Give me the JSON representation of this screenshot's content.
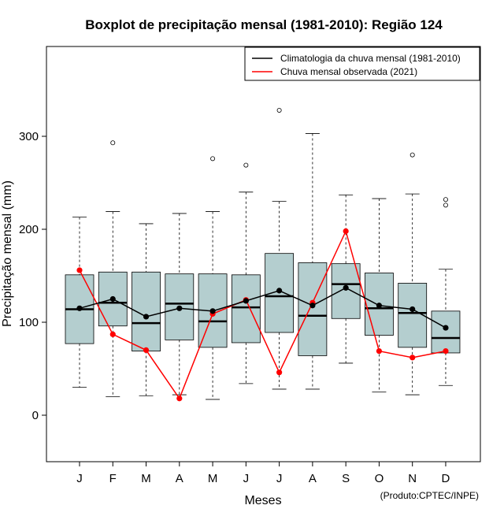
{
  "chart_data": {
    "type": "boxplot",
    "title": "Boxplot de precipitação mensal (1981-2010): Região 124",
    "xlabel": "Meses",
    "ylabel": "Precipitação mensal (mm)",
    "categories": [
      "J",
      "F",
      "M",
      "A",
      "M",
      "J",
      "J",
      "A",
      "S",
      "O",
      "N",
      "D"
    ],
    "ylim": [
      -50,
      400
    ],
    "yticks": [
      0,
      100,
      200,
      300
    ],
    "box_color": "#b4cecf",
    "boxes": [
      {
        "whisker_low": 30,
        "q1": 77,
        "median": 114,
        "q3": 151,
        "whisker_high": 213,
        "outliers": []
      },
      {
        "whisker_low": 20,
        "q1": 96,
        "median": 121,
        "q3": 154,
        "whisker_high": 219,
        "outliers": [
          293
        ]
      },
      {
        "whisker_low": 21,
        "q1": 69,
        "median": 99,
        "q3": 154,
        "whisker_high": 206,
        "outliers": []
      },
      {
        "whisker_low": 22,
        "q1": 81,
        "median": 120,
        "q3": 152,
        "whisker_high": 217,
        "outliers": []
      },
      {
        "whisker_low": 17,
        "q1": 73,
        "median": 101,
        "q3": 152,
        "whisker_high": 219,
        "outliers": [
          276
        ]
      },
      {
        "whisker_low": 34,
        "q1": 78,
        "median": 116,
        "q3": 151,
        "whisker_high": 240,
        "outliers": [
          269
        ]
      },
      {
        "whisker_low": 28,
        "q1": 89,
        "median": 128,
        "q3": 174,
        "whisker_high": 230,
        "outliers": [
          328
        ]
      },
      {
        "whisker_low": 28,
        "q1": 64,
        "median": 107,
        "q3": 164,
        "whisker_high": 303,
        "outliers": []
      },
      {
        "whisker_low": 56,
        "q1": 104,
        "median": 141,
        "q3": 163,
        "whisker_high": 237,
        "outliers": []
      },
      {
        "whisker_low": 25,
        "q1": 86,
        "median": 115,
        "q3": 153,
        "whisker_high": 233,
        "outliers": []
      },
      {
        "whisker_low": 22,
        "q1": 73,
        "median": 110,
        "q3": 142,
        "whisker_high": 238,
        "outliers": [
          280
        ]
      },
      {
        "whisker_low": 32,
        "q1": 67,
        "median": 83,
        "q3": 112,
        "whisker_high": 157,
        "outliers": [
          226,
          232
        ]
      }
    ],
    "series": [
      {
        "name": "Climatologia da chuva mensal (1981-2010)",
        "color": "#000000",
        "values": [
          115,
          125,
          106,
          115,
          112,
          123,
          134,
          118,
          137,
          118,
          114,
          94
        ]
      },
      {
        "name": "Chuva mensal observada (2021)",
        "color": "#ff0000",
        "values": [
          156,
          87,
          70,
          18,
          109,
          124,
          46,
          121,
          198,
          69,
          62,
          69
        ]
      }
    ],
    "legend_position": "top-right",
    "credit": "(Produto:CPTEC/INPE)"
  }
}
